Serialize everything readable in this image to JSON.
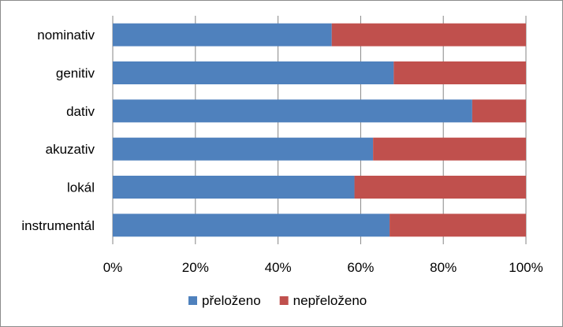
{
  "chart_data": {
    "type": "bar",
    "orientation": "horizontal",
    "stacked": "percent",
    "categories": [
      "nominativ",
      "genitiv",
      "dativ",
      "akuzativ",
      "lokál",
      "instrumentál"
    ],
    "series": [
      {
        "name": "přeloženo",
        "color": "#4f81bd",
        "values": [
          53,
          68,
          87,
          63,
          58.5,
          67
        ]
      },
      {
        "name": "nepřeloženo",
        "color": "#c0504d",
        "values": [
          47,
          32,
          13,
          37,
          41.5,
          33
        ]
      }
    ],
    "xlim": [
      0,
      100
    ],
    "x_ticks": [
      "0%",
      "20%",
      "40%",
      "60%",
      "80%",
      "100%"
    ],
    "grid": true,
    "legend_position": "bottom"
  }
}
